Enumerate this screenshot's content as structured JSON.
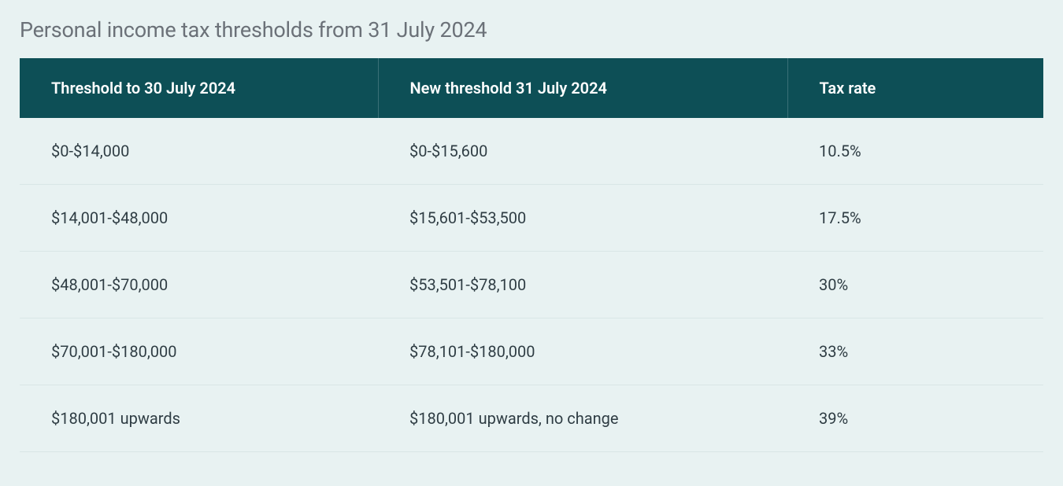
{
  "title": "Personal income tax thresholds from 31 July 2024",
  "table": {
    "type": "table",
    "header_bg_color": "#0d4f56",
    "header_text_color": "#ffffff",
    "header_border_color": "#3a7077",
    "row_bg_color": "#e8f2f2",
    "row_border_color": "#d9e6e6",
    "body_text_color": "#2f3d44",
    "title_color": "#6b7178",
    "background_color": "#e8f2f2",
    "title_fontsize": 27,
    "header_fontsize": 20,
    "body_fontsize": 20,
    "columns": [
      {
        "label": "Threshold to 30 July 2024",
        "width_pct": 35
      },
      {
        "label": "New threshold 31 July 2024",
        "width_pct": 40
      },
      {
        "label": "Tax rate",
        "width_pct": 25
      }
    ],
    "rows": [
      {
        "old_threshold": "$0-$14,000",
        "new_threshold": "$0-$15,600",
        "rate": "10.5%"
      },
      {
        "old_threshold": "$14,001-$48,000",
        "new_threshold": "$15,601-$53,500",
        "rate": "17.5%"
      },
      {
        "old_threshold": "$48,001-$70,000",
        "new_threshold": "$53,501-$78,100",
        "rate": "30%"
      },
      {
        "old_threshold": "$70,001-$180,000",
        "new_threshold": "$78,101-$180,000",
        "rate": "33%"
      },
      {
        "old_threshold": "$180,001 upwards",
        "new_threshold": "$180,001 upwards, no change",
        "rate": "39%"
      }
    ]
  }
}
